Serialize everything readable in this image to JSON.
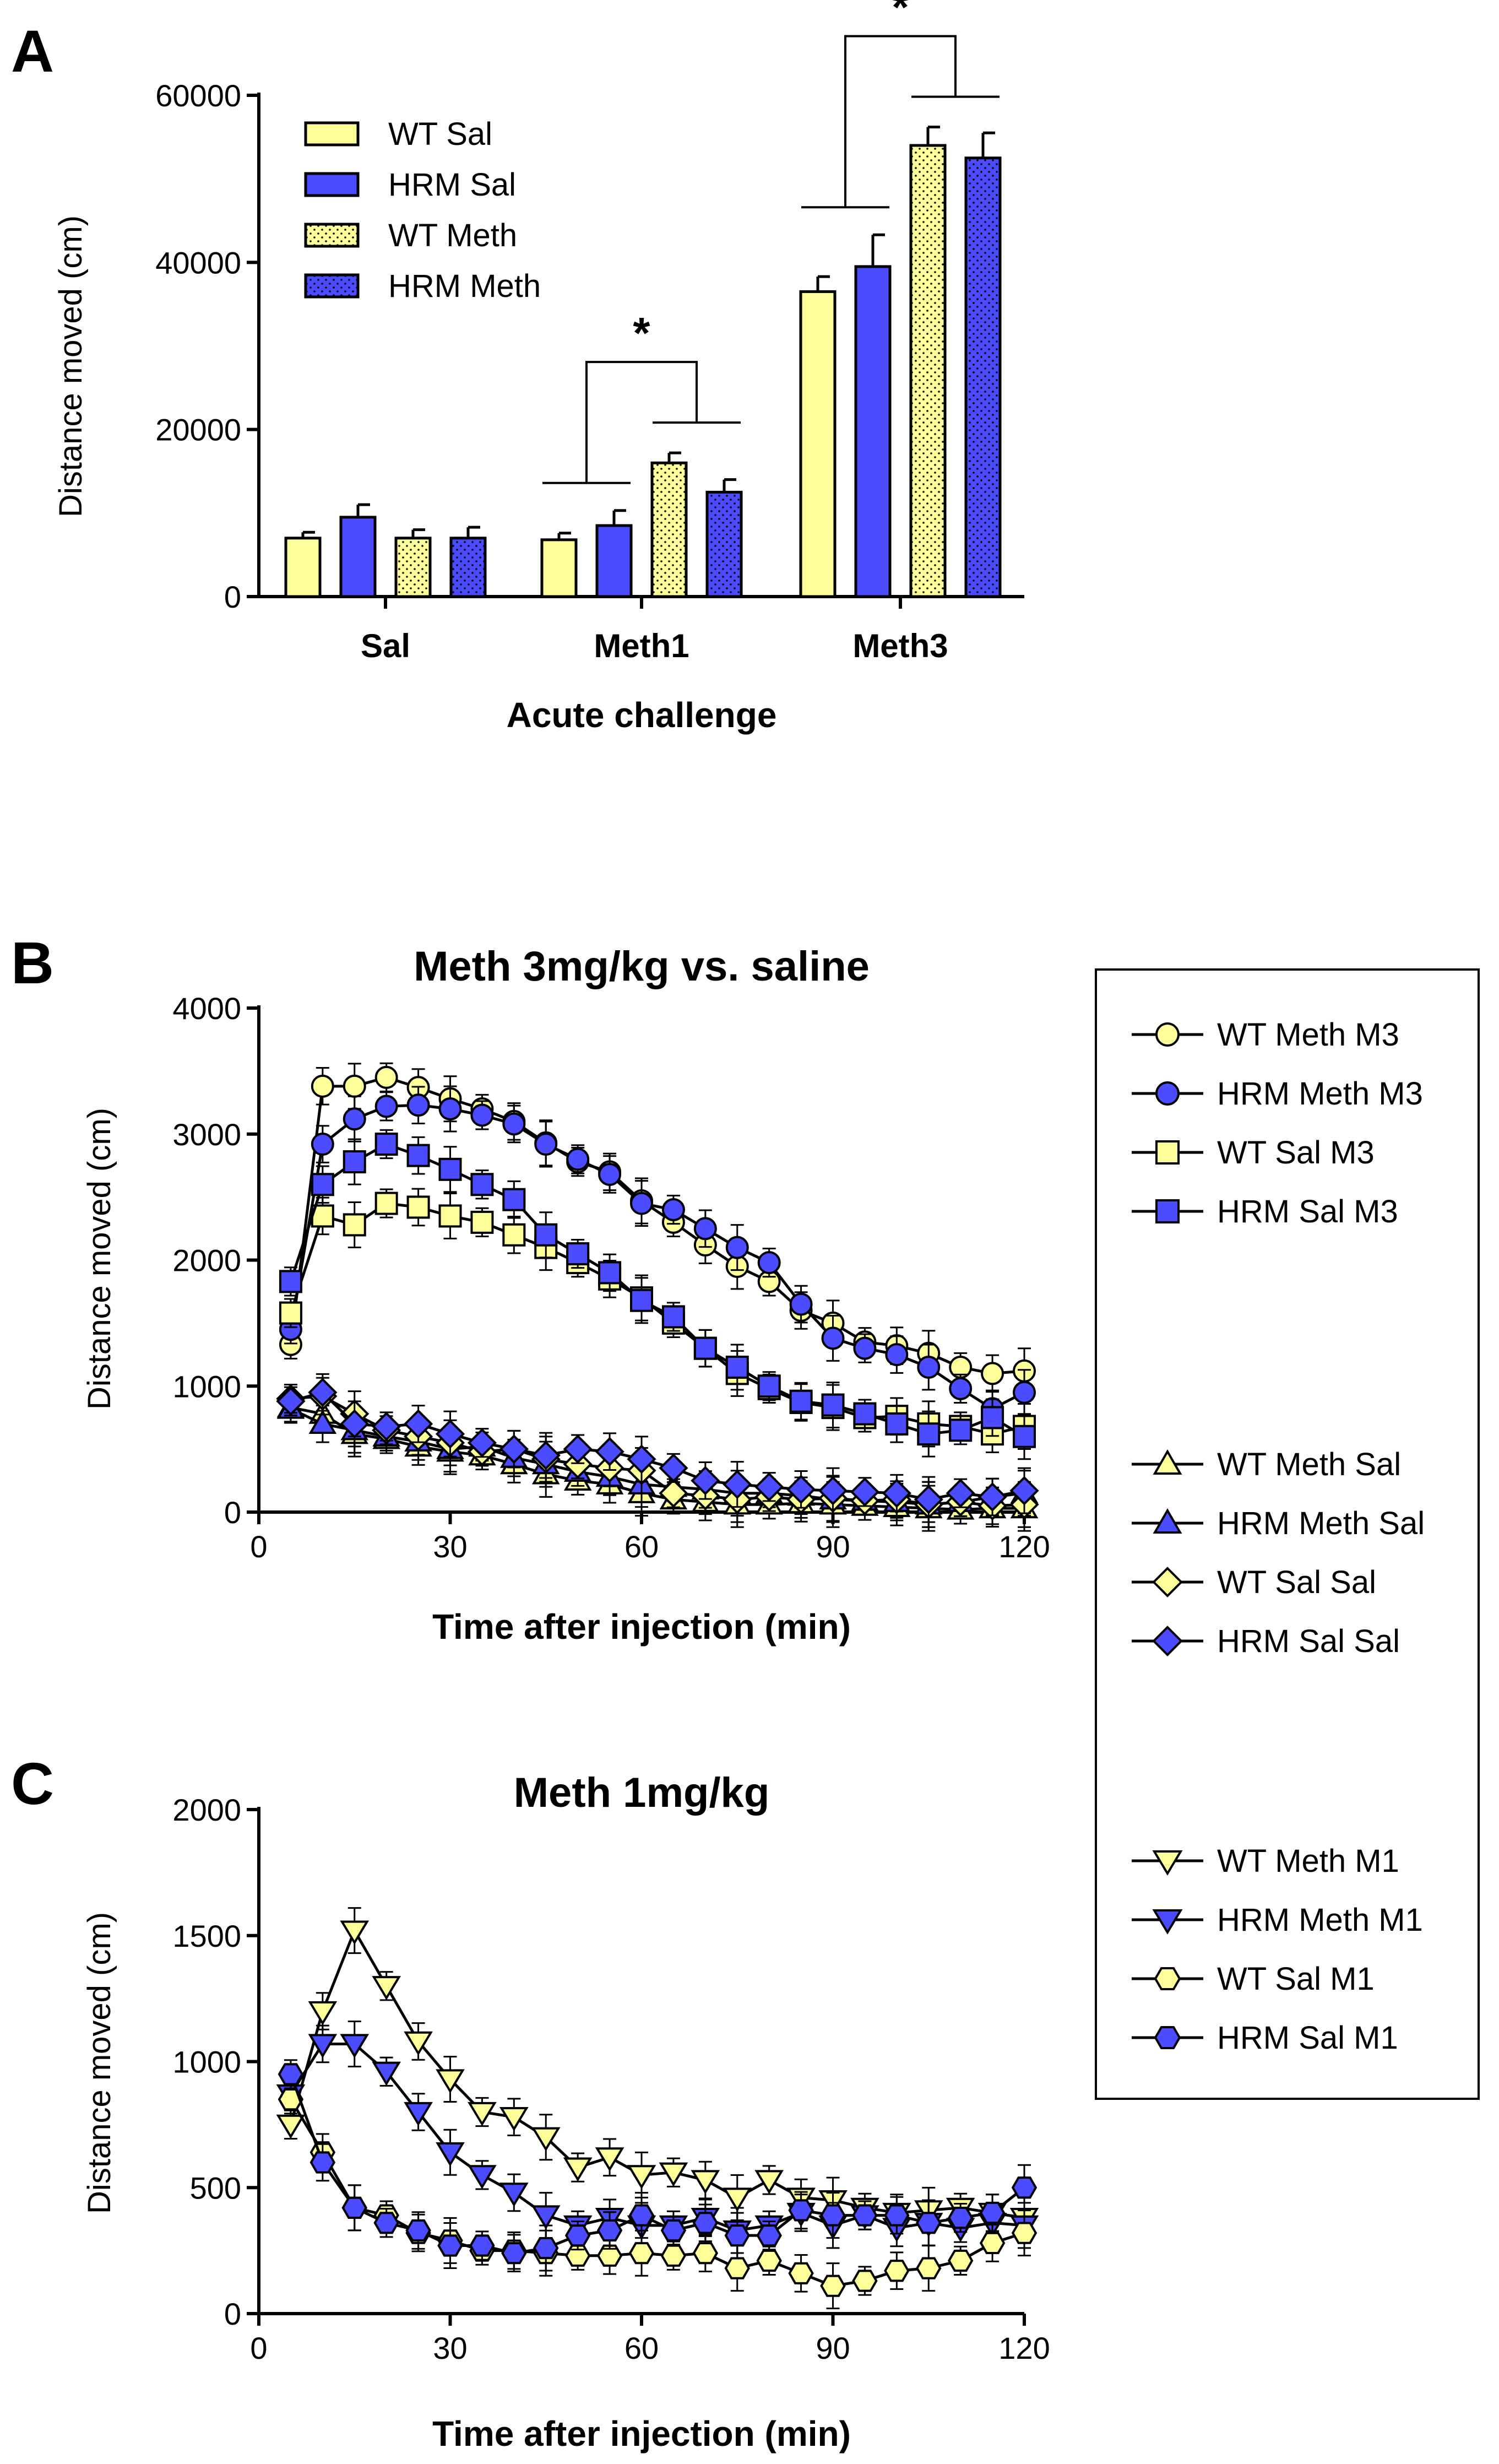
{
  "colors": {
    "wt": "#FFFF99",
    "hrm": "#4B4BFF",
    "outline": "#000000"
  },
  "panel_labels": [
    "A",
    "B",
    "C"
  ],
  "chart_data": [
    {
      "panel": "A",
      "type": "bar",
      "title": "",
      "xlabel": "Acute challenge",
      "ylabel": "Distance moved (cm)",
      "ylim": [
        0,
        60000
      ],
      "yticks": [
        "0",
        "20000",
        "40000",
        "60000"
      ],
      "categories": [
        "Sal",
        "Meth1",
        "Meth3"
      ],
      "series": [
        {
          "name": "WT Sal",
          "color": "wt",
          "dotted": false,
          "values": [
            7000,
            6800,
            36500
          ],
          "errors": [
            700,
            800,
            1800
          ]
        },
        {
          "name": "HRM Sal",
          "color": "hrm",
          "dotted": false,
          "values": [
            9500,
            8500,
            39500
          ],
          "errors": [
            1500,
            1800,
            3800
          ]
        },
        {
          "name": "WT Meth",
          "color": "wt",
          "dotted": true,
          "values": [
            7000,
            16000,
            54000
          ],
          "errors": [
            1000,
            1200,
            2200
          ]
        },
        {
          "name": "HRM Meth",
          "color": "hrm",
          "dotted": true,
          "values": [
            7000,
            12500,
            52500
          ],
          "errors": [
            1300,
            1500,
            3000
          ]
        }
      ],
      "annotations": [
        "*",
        "*"
      ]
    },
    {
      "panel": "B",
      "type": "line",
      "title": "Meth 3mg/kg vs. saline",
      "xlabel": "Time after injection (min)",
      "ylabel": "Distance moved (cm)",
      "xlim": [
        0,
        120
      ],
      "ylim": [
        0,
        4000
      ],
      "xticks": [
        "0",
        "30",
        "60",
        "90",
        "120"
      ],
      "yticks": [
        "0",
        "1000",
        "2000",
        "3000",
        "4000"
      ],
      "x": [
        5,
        10,
        15,
        20,
        25,
        30,
        35,
        40,
        45,
        50,
        55,
        60,
        65,
        70,
        75,
        80,
        85,
        90,
        95,
        100,
        105,
        110,
        115,
        120
      ],
      "series": [
        {
          "name": "WT Meth M3",
          "marker": "circle",
          "color": "wt",
          "values": [
            1330,
            3380,
            3380,
            3450,
            3370,
            3280,
            3200,
            3100,
            2930,
            2780,
            2700,
            2470,
            2300,
            2120,
            1950,
            1830,
            1600,
            1500,
            1350,
            1320,
            1260,
            1150,
            1100,
            1120
          ]
        },
        {
          "name": "HRM Meth M3",
          "marker": "circle",
          "color": "hrm",
          "values": [
            1450,
            2920,
            3120,
            3220,
            3230,
            3200,
            3150,
            3080,
            2920,
            2800,
            2680,
            2450,
            2400,
            2250,
            2100,
            1980,
            1650,
            1380,
            1300,
            1250,
            1150,
            980,
            820,
            950
          ]
        },
        {
          "name": "WT Sal M3",
          "marker": "square",
          "color": "wt",
          "values": [
            1580,
            2350,
            2280,
            2450,
            2420,
            2350,
            2300,
            2200,
            2100,
            1980,
            1850,
            1700,
            1500,
            1300,
            1100,
            980,
            870,
            830,
            750,
            760,
            700,
            680,
            620,
            680
          ]
        },
        {
          "name": "HRM Sal M3",
          "marker": "square",
          "color": "hrm",
          "values": [
            1830,
            2600,
            2780,
            2920,
            2830,
            2720,
            2600,
            2480,
            2200,
            2050,
            1900,
            1680,
            1550,
            1300,
            1150,
            1000,
            880,
            850,
            780,
            700,
            620,
            650,
            750,
            600
          ]
        },
        {
          "name": "WT Meth Sal",
          "marker": "triangle",
          "color": "wt",
          "values": [
            830,
            780,
            620,
            580,
            520,
            480,
            450,
            380,
            300,
            250,
            220,
            150,
            100,
            80,
            60,
            60,
            70,
            60,
            50,
            40,
            30,
            20,
            30,
            30
          ]
        },
        {
          "name": "HRM Meth Sal",
          "marker": "triangle",
          "color": "hrm",
          "values": [
            820,
            700,
            650,
            600,
            560,
            500,
            520,
            430,
            380,
            320,
            280,
            220,
            200,
            180,
            150,
            150,
            130,
            100,
            90,
            80,
            60,
            80,
            120,
            150
          ]
        },
        {
          "name": "WT Sal Sal",
          "marker": "diamond",
          "color": "wt",
          "values": [
            900,
            920,
            780,
            650,
            600,
            550,
            480,
            500,
            420,
            380,
            350,
            330,
            150,
            130,
            100,
            120,
            100,
            110,
            90,
            100,
            60,
            80,
            50,
            60
          ]
        },
        {
          "name": "HRM Sal Sal",
          "marker": "diamond",
          "color": "hrm",
          "values": [
            880,
            950,
            700,
            680,
            700,
            620,
            550,
            500,
            450,
            500,
            480,
            420,
            350,
            250,
            220,
            200,
            180,
            170,
            160,
            150,
            100,
            150,
            120,
            170
          ]
        }
      ]
    },
    {
      "panel": "C",
      "type": "line",
      "title": "Meth 1mg/kg",
      "xlabel": "Time after injection (min)",
      "ylabel": "Distance moved (cm)",
      "xlim": [
        0,
        120
      ],
      "ylim": [
        0,
        2000
      ],
      "xticks": [
        "0",
        "30",
        "60",
        "90",
        "120"
      ],
      "yticks": [
        "0",
        "500",
        "1000",
        "1500",
        "2000"
      ],
      "x": [
        5,
        10,
        15,
        20,
        25,
        30,
        35,
        40,
        45,
        50,
        55,
        60,
        65,
        70,
        75,
        80,
        85,
        90,
        95,
        100,
        105,
        110,
        115,
        120
      ],
      "series": [
        {
          "name": "WT Meth M1",
          "marker": "triangle-down",
          "color": "wt",
          "values": [
            750,
            1200,
            1520,
            1300,
            1080,
            930,
            800,
            780,
            700,
            580,
            620,
            550,
            560,
            530,
            460,
            530,
            460,
            450,
            420,
            400,
            410,
            420,
            400,
            380
          ]
        },
        {
          "name": "HRM Meth M1",
          "marker": "triangle-down",
          "color": "hrm",
          "values": [
            870,
            1070,
            1070,
            960,
            800,
            640,
            550,
            480,
            390,
            350,
            380,
            350,
            350,
            380,
            330,
            350,
            400,
            350,
            390,
            340,
            360,
            340,
            360,
            350
          ]
        },
        {
          "name": "WT Sal M1",
          "marker": "hexagon",
          "color": "wt",
          "values": [
            850,
            640,
            420,
            390,
            320,
            290,
            250,
            250,
            240,
            230,
            230,
            240,
            230,
            240,
            180,
            210,
            160,
            110,
            130,
            170,
            180,
            210,
            280,
            320
          ]
        },
        {
          "name": "HRM Sal M1",
          "marker": "hexagon",
          "color": "hrm",
          "values": [
            950,
            600,
            420,
            360,
            330,
            270,
            270,
            240,
            260,
            310,
            330,
            390,
            330,
            360,
            310,
            310,
            410,
            390,
            390,
            390,
            360,
            380,
            400,
            500
          ]
        }
      ]
    }
  ]
}
